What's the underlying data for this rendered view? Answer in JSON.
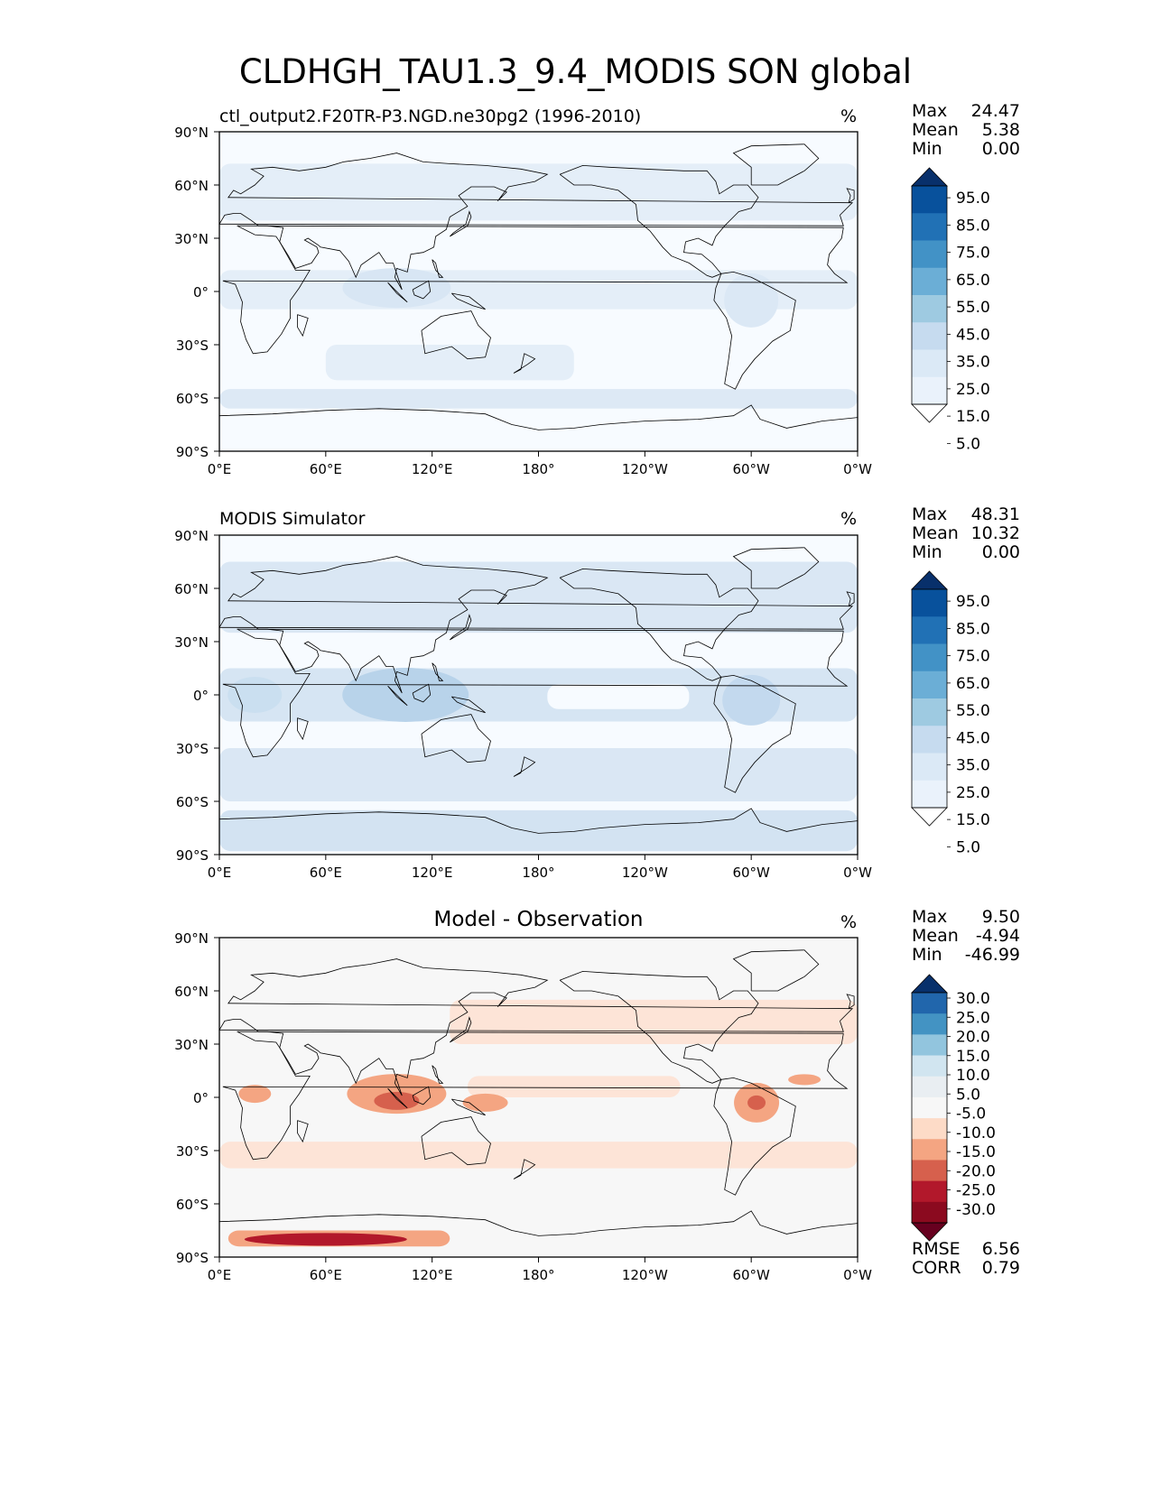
{
  "figure_title": "CLDHGH_TAU1.3_9.4_MODIS SON global",
  "colors": {
    "land_outline": "#000000",
    "ocean_base": "#f7fbff"
  },
  "chart_data": [
    {
      "type": "heatmap",
      "panel": "test",
      "title_left": "ctl_output2.F20TR-P3.NGD.ne30pg2 (1996-2010)",
      "title_center": "",
      "unit": "%",
      "x_ticks": [
        "0°E",
        "60°E",
        "120°E",
        "180°",
        "120°W",
        "60°W",
        "0°W"
      ],
      "y_ticks": [
        "90°N",
        "60°N",
        "30°N",
        "0°",
        "30°S",
        "60°S",
        "90°S"
      ],
      "xlim": [
        0,
        360
      ],
      "ylim": [
        -90,
        90
      ],
      "stats": {
        "max_label": "Max",
        "max": "24.47",
        "mean_label": "Mean",
        "mean": "5.38",
        "min_label": "Min",
        "min": "0.00"
      },
      "colorbar": {
        "levels": [
          "95.0",
          "85.0",
          "75.0",
          "65.0",
          "55.0",
          "45.0",
          "35.0",
          "25.0",
          "15.0",
          "5.0"
        ],
        "colors": [
          "#08306b",
          "#08519c",
          "#2171b5",
          "#4292c6",
          "#6baed6",
          "#9ecae1",
          "#c6dbef",
          "#dbe9f6",
          "#eaf2fb",
          "#ffffff"
        ]
      }
    },
    {
      "type": "heatmap",
      "panel": "reference",
      "title_left": "MODIS Simulator",
      "title_center": "",
      "unit": "%",
      "x_ticks": [
        "0°E",
        "60°E",
        "120°E",
        "180°",
        "120°W",
        "60°W",
        "0°W"
      ],
      "y_ticks": [
        "90°N",
        "60°N",
        "30°N",
        "0°",
        "30°S",
        "60°S",
        "90°S"
      ],
      "xlim": [
        0,
        360
      ],
      "ylim": [
        -90,
        90
      ],
      "stats": {
        "max_label": "Max",
        "max": "48.31",
        "mean_label": "Mean",
        "mean": "10.32",
        "min_label": "Min",
        "min": "0.00"
      },
      "colorbar": {
        "levels": [
          "95.0",
          "85.0",
          "75.0",
          "65.0",
          "55.0",
          "45.0",
          "35.0",
          "25.0",
          "15.0",
          "5.0"
        ],
        "colors": [
          "#08306b",
          "#08519c",
          "#2171b5",
          "#4292c6",
          "#6baed6",
          "#9ecae1",
          "#c6dbef",
          "#dbe9f6",
          "#eaf2fb",
          "#ffffff"
        ]
      }
    },
    {
      "type": "heatmap",
      "panel": "difference",
      "title_left": "",
      "title_center": "Model - Observation",
      "unit": "%",
      "x_ticks": [
        "0°E",
        "60°E",
        "120°E",
        "180°",
        "120°W",
        "60°W",
        "0°W"
      ],
      "y_ticks": [
        "90°N",
        "60°N",
        "30°N",
        "0°",
        "30°S",
        "60°S",
        "90°S"
      ],
      "xlim": [
        0,
        360
      ],
      "ylim": [
        -90,
        90
      ],
      "stats": {
        "max_label": "Max",
        "max": "9.50",
        "mean_label": "Mean",
        "mean": "-4.94",
        "min_label": "Min",
        "min": "-46.99"
      },
      "extra_stats": {
        "rmse_label": "RMSE",
        "rmse": "6.56",
        "corr_label": "CORR",
        "corr": "0.79"
      },
      "colorbar": {
        "levels": [
          "30.0",
          "25.0",
          "20.0",
          "15.0",
          "10.0",
          "5.0",
          "-5.0",
          "-10.0",
          "-15.0",
          "-20.0",
          "-25.0",
          "-30.0"
        ],
        "colors": [
          "#08306b",
          "#2166ac",
          "#4393c3",
          "#92c5de",
          "#d1e5f0",
          "#e9eef2",
          "#f7f7f7",
          "#fddbc7",
          "#f4a582",
          "#d6604d",
          "#b2182b",
          "#8b0a1f",
          "#67001f"
        ]
      }
    }
  ]
}
